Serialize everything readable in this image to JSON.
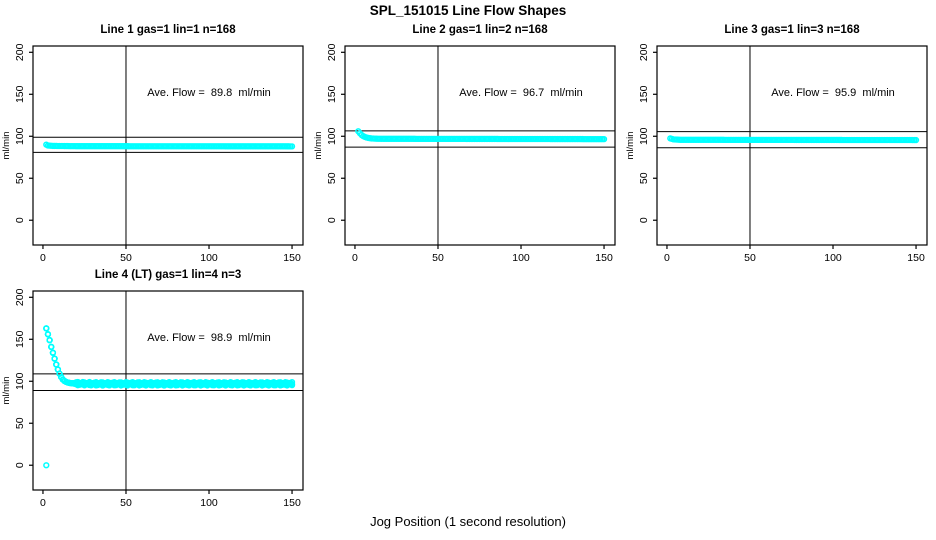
{
  "page": {
    "title": "SPL_151015  Line Flow Shapes",
    "xlabel": "Jog Position (1 second resolution)"
  },
  "colors": {
    "marker": "#00FFFF",
    "axis": "#000000",
    "background": "#FFFFFF"
  },
  "chart_data": [
    {
      "type": "scatter",
      "title": "Line 1 gas=1 lin=1 n=168",
      "annotation": "Ave. Flow =  89.8  ml/min",
      "ave_flow": 89.8,
      "gas": 1,
      "lin": 1,
      "n": 168,
      "ylabel": "ml/min",
      "x_ticks": [
        0,
        50,
        100,
        150
      ],
      "y_ticks": [
        0,
        50,
        100,
        150,
        200
      ],
      "xlim": [
        -6,
        156.6
      ],
      "ylim": [
        -29.5,
        207.5
      ],
      "vline_x": 50,
      "hlines": [
        98.8,
        80.8
      ],
      "marker": "open-circle",
      "x_step": 1,
      "keypoints": [
        [
          2,
          90
        ],
        [
          3,
          89
        ],
        [
          6,
          88.5
        ],
        [
          20,
          88.2
        ],
        [
          150,
          88
        ]
      ],
      "outliers": []
    },
    {
      "type": "scatter",
      "title": "Line 2 gas=1 lin=2 n=168",
      "annotation": "Ave. Flow =  96.7  ml/min",
      "ave_flow": 96.7,
      "gas": 1,
      "lin": 2,
      "n": 168,
      "ylabel": "ml/min",
      "x_ticks": [
        0,
        50,
        100,
        150
      ],
      "y_ticks": [
        0,
        50,
        100,
        150,
        200
      ],
      "xlim": [
        -6,
        156.6
      ],
      "ylim": [
        -29.5,
        207.5
      ],
      "vline_x": 50,
      "hlines": [
        106.4,
        87.0
      ],
      "marker": "open-circle",
      "x_step": 1,
      "keypoints": [
        [
          2,
          106
        ],
        [
          3,
          103.5
        ],
        [
          4,
          101.5
        ],
        [
          5,
          100.2
        ],
        [
          6,
          99.2
        ],
        [
          7,
          98.5
        ],
        [
          8,
          98
        ],
        [
          10,
          97.4
        ],
        [
          14,
          97
        ],
        [
          150,
          96.6
        ]
      ],
      "outliers": []
    },
    {
      "type": "scatter",
      "title": "Line 3 gas=1 lin=3 n=168",
      "annotation": "Ave. Flow =  95.9  ml/min",
      "ave_flow": 95.9,
      "gas": 1,
      "lin": 3,
      "n": 168,
      "ylabel": "ml/min",
      "x_ticks": [
        0,
        50,
        100,
        150
      ],
      "y_ticks": [
        0,
        50,
        100,
        150,
        200
      ],
      "xlim": [
        -6,
        156.6
      ],
      "ylim": [
        -29.5,
        207.5
      ],
      "vline_x": 50,
      "hlines": [
        105.5,
        86.3
      ],
      "marker": "open-circle",
      "x_step": 1,
      "keypoints": [
        [
          2,
          97.5
        ],
        [
          4,
          96.3
        ],
        [
          8,
          95.8
        ],
        [
          150,
          95.5
        ]
      ],
      "outliers": []
    },
    {
      "type": "scatter",
      "title": "Line 4 (LT) gas=1 lin=4 n=3",
      "annotation": "Ave. Flow =  98.9  ml/min",
      "ave_flow": 98.9,
      "gas": 1,
      "lin": 4,
      "n": 3,
      "ylabel": "ml/min",
      "x_ticks": [
        0,
        50,
        100,
        150
      ],
      "y_ticks": [
        0,
        50,
        100,
        150,
        200
      ],
      "xlim": [
        -6,
        156.6
      ],
      "ylim": [
        -29.5,
        207.5
      ],
      "vline_x": 50,
      "hlines": [
        108.8,
        89.0
      ],
      "marker": "open-circle",
      "x_step": 1,
      "n_overlays": 3,
      "noise_after_x": 18,
      "keypoints": [
        [
          2,
          163
        ],
        [
          3,
          156
        ],
        [
          4,
          149
        ],
        [
          5,
          141
        ],
        [
          6,
          134
        ],
        [
          7,
          127
        ],
        [
          8,
          120
        ],
        [
          9,
          114
        ],
        [
          10,
          109
        ],
        [
          11,
          105
        ],
        [
          12,
          102
        ],
        [
          13,
          100.3
        ],
        [
          14,
          99.2
        ],
        [
          15,
          98.5
        ],
        [
          16,
          98
        ],
        [
          18,
          97.6
        ],
        [
          20,
          97.3
        ],
        [
          30,
          97
        ],
        [
          150,
          97
        ]
      ],
      "outliers": [
        [
          2,
          0
        ]
      ]
    }
  ]
}
